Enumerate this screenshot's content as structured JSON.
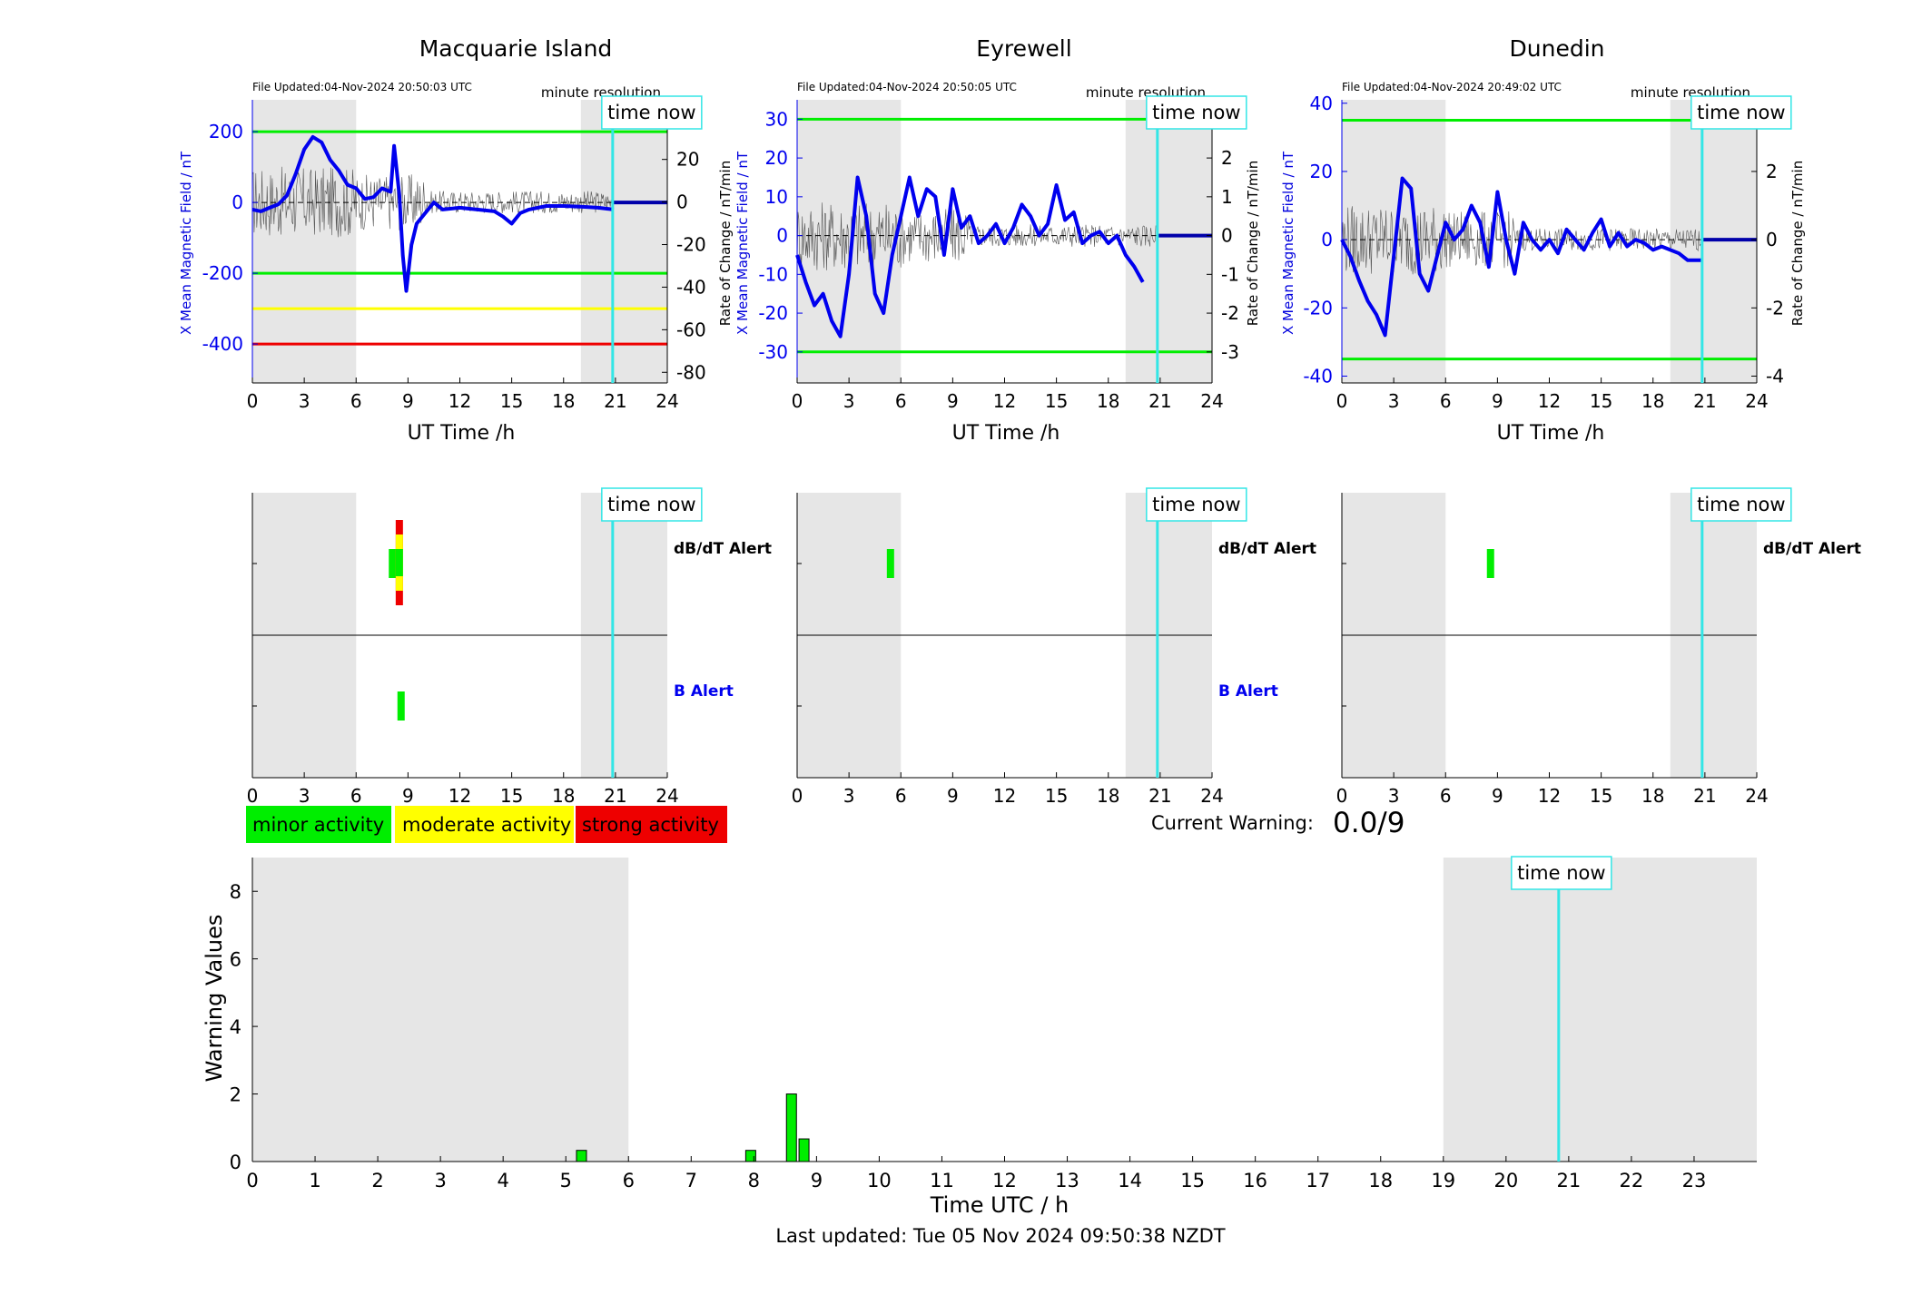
{
  "stations": [
    {
      "name": "Macquarie Island",
      "file_updated": "File Updated:04-Nov-2024 20:50:03 UTC",
      "resolution": "minute resolution",
      "time_now_label": "time now",
      "ylabel_left": "X Mean Magnetic Field / nT",
      "ylabel_right": "Rate of Change / nT/min",
      "xlabel": "UT Time /h",
      "ylim_left": [
        -510,
        290
      ],
      "yticks_left": [
        -400,
        -200,
        0,
        200
      ],
      "ylim_right": [
        -85,
        48
      ],
      "yticks_right": [
        -80,
        -60,
        -40,
        -20,
        0,
        20,
        40
      ],
      "thresholds": [
        {
          "value": 200,
          "color": "#00ee00"
        },
        {
          "value": -200,
          "color": "#00ee00"
        },
        {
          "value": -300,
          "color": "#ffff00"
        },
        {
          "value": -400,
          "color": "#ee0000"
        }
      ],
      "field_trace": {
        "t": [
          0,
          0.5,
          1,
          1.5,
          2,
          2.5,
          3,
          3.5,
          4,
          4.5,
          5,
          5.5,
          6,
          6.5,
          7,
          7.5,
          8,
          8.2,
          8.5,
          8.7,
          8.9,
          9.2,
          9.5,
          10,
          10.5,
          11,
          12,
          13,
          14,
          14.5,
          15,
          15.5,
          16,
          17,
          18,
          19,
          20,
          20.9
        ],
        "x": [
          -20,
          -25,
          -15,
          -5,
          20,
          80,
          150,
          185,
          170,
          120,
          90,
          50,
          40,
          10,
          15,
          40,
          30,
          160,
          20,
          -150,
          -250,
          -120,
          -60,
          -30,
          0,
          -20,
          -15,
          -20,
          -25,
          -40,
          -60,
          -30,
          -20,
          -10,
          -10,
          -12,
          -15,
          -20
        ]
      },
      "dbdt_alerts": [
        {
          "t": 8.1,
          "level": "minor"
        },
        {
          "t": 8.5,
          "level": "strong"
        }
      ],
      "b_alerts": [
        {
          "t": 8.6,
          "level": "minor"
        }
      ]
    },
    {
      "name": "Eyrewell",
      "file_updated": "File Updated:04-Nov-2024 20:50:05 UTC",
      "resolution": "minute resolution",
      "time_now_label": "time now",
      "ylabel_left": "X Mean Magnetic Field / nT",
      "ylabel_right": "Rate of Change / nT/min",
      "xlabel": "UT Time /h",
      "ylim_left": [
        -38,
        35
      ],
      "yticks_left": [
        -30,
        -20,
        -10,
        0,
        10,
        20,
        30
      ],
      "ylim_right": [
        -3.8,
        3.5
      ],
      "yticks_right": [
        -3,
        -2,
        -1,
        0,
        1,
        2,
        3
      ],
      "thresholds": [
        {
          "value": 30,
          "color": "#00ee00"
        },
        {
          "value": -30,
          "color": "#00ee00"
        }
      ],
      "field_trace": {
        "t": [
          0,
          0.5,
          1,
          1.5,
          2,
          2.5,
          3,
          3.5,
          4,
          4.5,
          5,
          5.5,
          6,
          6.5,
          7,
          7.5,
          8,
          8.5,
          9,
          9.5,
          10,
          10.5,
          11,
          11.5,
          12,
          12.5,
          13,
          13.5,
          14,
          14.5,
          15,
          15.5,
          16,
          16.5,
          17,
          17.5,
          18,
          18.5,
          19,
          19.5,
          20
        ],
        "x": [
          -5,
          -12,
          -18,
          -15,
          -22,
          -26,
          -10,
          15,
          5,
          -15,
          -20,
          -5,
          5,
          15,
          5,
          12,
          10,
          -5,
          12,
          2,
          5,
          -2,
          0,
          3,
          -2,
          2,
          8,
          5,
          0,
          3,
          13,
          4,
          6,
          -2,
          0,
          1,
          -2,
          0,
          -5,
          -8,
          -12
        ]
      },
      "dbdt_alerts": [
        {
          "t": 5.4,
          "level": "minor"
        }
      ],
      "b_alerts": []
    },
    {
      "name": "Dunedin",
      "file_updated": "File Updated:04-Nov-2024 20:49:02 UTC",
      "resolution": "minute resolution",
      "time_now_label": "time now",
      "ylabel_left": "X Mean Magnetic Field / nT",
      "ylabel_right": "Rate of Change / nT/min",
      "xlabel": "UT Time /h",
      "ylim_left": [
        -42,
        41
      ],
      "yticks_left": [
        -40,
        -20,
        0,
        20,
        40
      ],
      "ylim_right": [
        -4.2,
        4.1
      ],
      "yticks_right": [
        -4,
        -2,
        0,
        2,
        4
      ],
      "thresholds": [
        {
          "value": 35,
          "color": "#00ee00"
        },
        {
          "value": -35,
          "color": "#00ee00"
        }
      ],
      "field_trace": {
        "t": [
          0,
          0.5,
          1,
          1.5,
          2,
          2.5,
          3,
          3.5,
          4,
          4.5,
          5,
          5.5,
          6,
          6.5,
          7,
          7.5,
          8,
          8.5,
          9,
          9.5,
          10,
          10.5,
          11,
          11.5,
          12,
          12.5,
          13,
          13.5,
          14,
          14.5,
          15,
          15.5,
          16,
          16.5,
          17,
          17.5,
          18,
          18.5,
          19,
          19.5,
          20,
          20.9
        ],
        "x": [
          0,
          -5,
          -12,
          -18,
          -22,
          -28,
          -5,
          18,
          15,
          -10,
          -15,
          -5,
          5,
          0,
          3,
          10,
          5,
          -8,
          14,
          0,
          -10,
          5,
          0,
          -3,
          0,
          -4,
          3,
          0,
          -3,
          2,
          6,
          -2,
          2,
          -2,
          0,
          -1,
          -3,
          -2,
          -3,
          -4,
          -6,
          -6
        ]
      },
      "dbdt_alerts": [
        {
          "t": 8.6,
          "level": "minor"
        }
      ],
      "b_alerts": []
    }
  ],
  "alert_panel": {
    "dbdt_label": "dB/dT Alert",
    "b_label": "B Alert",
    "xticks": [
      0,
      3,
      6,
      9,
      12,
      15,
      18,
      21,
      24
    ],
    "time_now_label": "time now"
  },
  "legend": [
    {
      "label": "minor activity",
      "color": "#00ee00"
    },
    {
      "label": "moderate activity",
      "color": "#ffff00"
    },
    {
      "label": "strong activity",
      "color": "#ee0000"
    }
  ],
  "current_warning": {
    "label": "Current Warning:",
    "value": "0.0/9"
  },
  "shading": {
    "night_start": 0,
    "night_end": 6,
    "late_start": 19,
    "late_end": 24
  },
  "time_now_h": 20.84,
  "chart_data": {
    "type": "bar",
    "x": [
      5.25,
      7.95,
      8.6,
      8.8
    ],
    "values": [
      0.33,
      0.33,
      2,
      0.67
    ],
    "xlabel": "Time UTC / h",
    "ylabel": "Warning Values",
    "xlim": [
      0,
      24
    ],
    "ylim": [
      0,
      9
    ],
    "xticks": [
      0,
      1,
      2,
      3,
      4,
      5,
      6,
      7,
      8,
      9,
      10,
      11,
      12,
      13,
      14,
      15,
      16,
      17,
      18,
      19,
      20,
      21,
      22,
      23
    ],
    "yticks": [
      0,
      2,
      4,
      6,
      8
    ],
    "bar_color": "#00ee00",
    "time_now_label": "time now",
    "grid": false
  },
  "footer": {
    "last_updated": "Last updated: Tue 05 Nov 2024 09:50:38 NZDT"
  }
}
